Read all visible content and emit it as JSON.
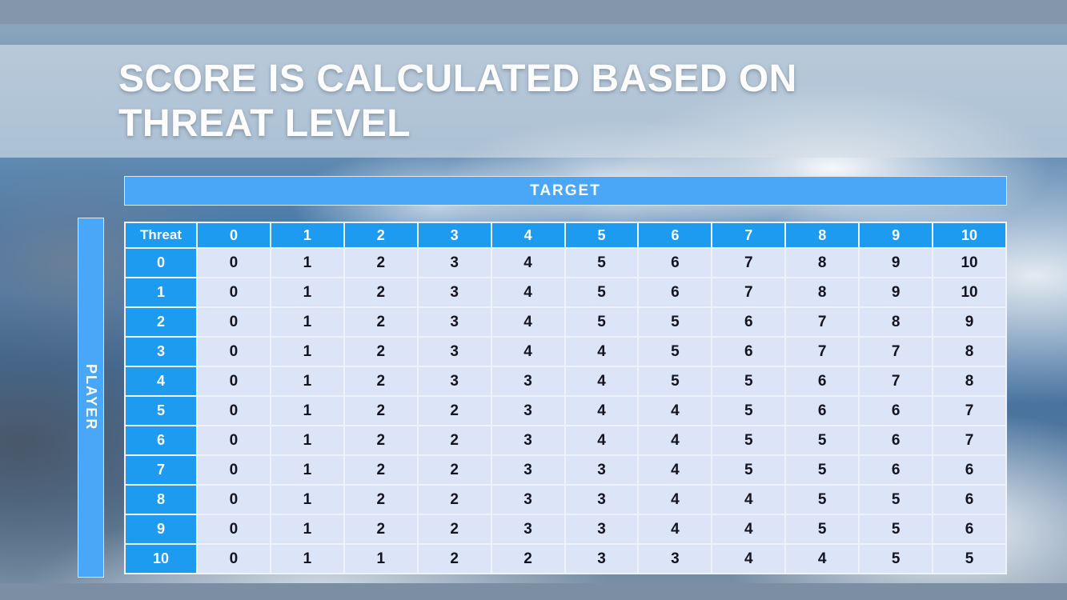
{
  "title": {
    "line1": "SCORE IS CALCULATED BASED ON",
    "line2": "THREAT LEVEL"
  },
  "chart_data": {
    "type": "table",
    "title": "SCORE IS CALCULATED BASED ON THREAT LEVEL",
    "x_axis_label": "TARGET",
    "y_axis_label": "PLAYER",
    "corner_label": "Threat",
    "column_headers": [
      "0",
      "1",
      "2",
      "3",
      "4",
      "5",
      "6",
      "7",
      "8",
      "9",
      "10"
    ],
    "row_headers": [
      "0",
      "1",
      "2",
      "3",
      "4",
      "5",
      "6",
      "7",
      "8",
      "9",
      "10"
    ],
    "rows": [
      [
        0,
        1,
        2,
        3,
        4,
        5,
        6,
        7,
        8,
        9,
        10
      ],
      [
        0,
        1,
        2,
        3,
        4,
        5,
        6,
        7,
        8,
        9,
        10
      ],
      [
        0,
        1,
        2,
        3,
        4,
        5,
        5,
        6,
        7,
        8,
        9
      ],
      [
        0,
        1,
        2,
        3,
        4,
        4,
        5,
        6,
        7,
        7,
        8
      ],
      [
        0,
        1,
        2,
        3,
        3,
        4,
        5,
        5,
        6,
        7,
        8
      ],
      [
        0,
        1,
        2,
        2,
        3,
        4,
        4,
        5,
        6,
        6,
        7
      ],
      [
        0,
        1,
        2,
        2,
        3,
        4,
        4,
        5,
        5,
        6,
        7
      ],
      [
        0,
        1,
        2,
        2,
        3,
        3,
        4,
        5,
        5,
        6,
        6
      ],
      [
        0,
        1,
        2,
        2,
        3,
        3,
        4,
        4,
        5,
        5,
        6
      ],
      [
        0,
        1,
        2,
        2,
        3,
        3,
        4,
        4,
        5,
        5,
        6
      ],
      [
        0,
        1,
        1,
        2,
        2,
        3,
        3,
        4,
        4,
        5,
        5
      ]
    ],
    "legend_position": "none",
    "grid": "white-gridlines"
  },
  "colors": {
    "header_blue": "#1d9bf0",
    "axis_blue": "#4aa7f8",
    "cell_bg": "#dce4f8",
    "cell_text": "#141420",
    "top_bar": "#8496aa",
    "bottom_bar": "#7b8ea3",
    "title_text": "#fdfdfe",
    "title_band": "#d4dde7"
  }
}
